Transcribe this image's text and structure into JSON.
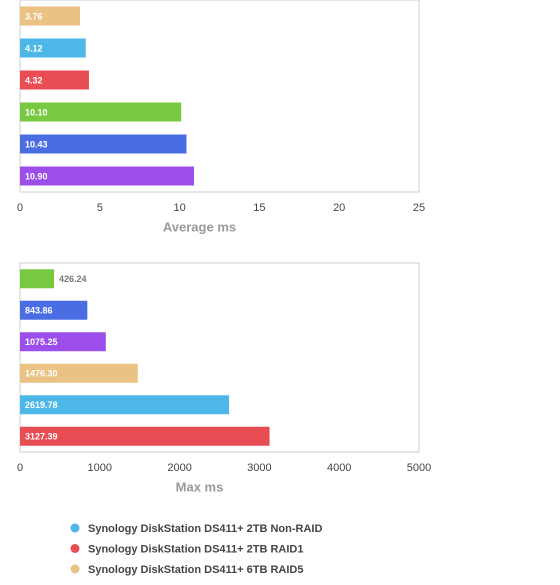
{
  "chart_data": [
    {
      "type": "bar",
      "orientation": "horizontal",
      "xlabel": "Average ms",
      "categories": [
        null,
        null,
        null,
        null,
        null,
        null
      ],
      "values": [
        3.76,
        4.12,
        4.32,
        10.1,
        10.43,
        10.9
      ],
      "value_labels": [
        "3.76",
        "4.12",
        "4.32",
        "10.10",
        "10.43",
        "10.90"
      ],
      "colors": [
        "#eac283",
        "#4db8e8",
        "#e84d54",
        "#79c842",
        "#4a6ee2",
        "#9b4ee9"
      ],
      "xlim": [
        0,
        25
      ],
      "xticks": [
        0,
        5,
        10,
        15,
        20,
        25
      ]
    },
    {
      "type": "bar",
      "orientation": "horizontal",
      "xlabel": "Max ms",
      "categories": [
        null,
        null,
        null,
        null,
        null,
        null
      ],
      "values": [
        426.24,
        843.86,
        1075.25,
        1476.3,
        2619.78,
        3127.39
      ],
      "value_labels": [
        "426.24",
        "843.86",
        "1075.25",
        "1476.30",
        "2619.78",
        "3127.39"
      ],
      "colors": [
        "#79c842",
        "#4a6ee2",
        "#9b4ee9",
        "#eac283",
        "#4db8e8",
        "#e84d54"
      ],
      "xlim": [
        0,
        5000
      ],
      "xticks": [
        0,
        1000,
        2000,
        3000,
        4000,
        5000
      ]
    }
  ],
  "legend": [
    {
      "name": "Synology DiskStation DS411+ 2TB Non-RAID",
      "color": "#4db8e8"
    },
    {
      "name": "Synology DiskStation DS411+ 2TB RAID1",
      "color": "#e84d54"
    },
    {
      "name": "Synology DiskStation DS411+ 6TB RAID5",
      "color": "#eac283"
    }
  ]
}
